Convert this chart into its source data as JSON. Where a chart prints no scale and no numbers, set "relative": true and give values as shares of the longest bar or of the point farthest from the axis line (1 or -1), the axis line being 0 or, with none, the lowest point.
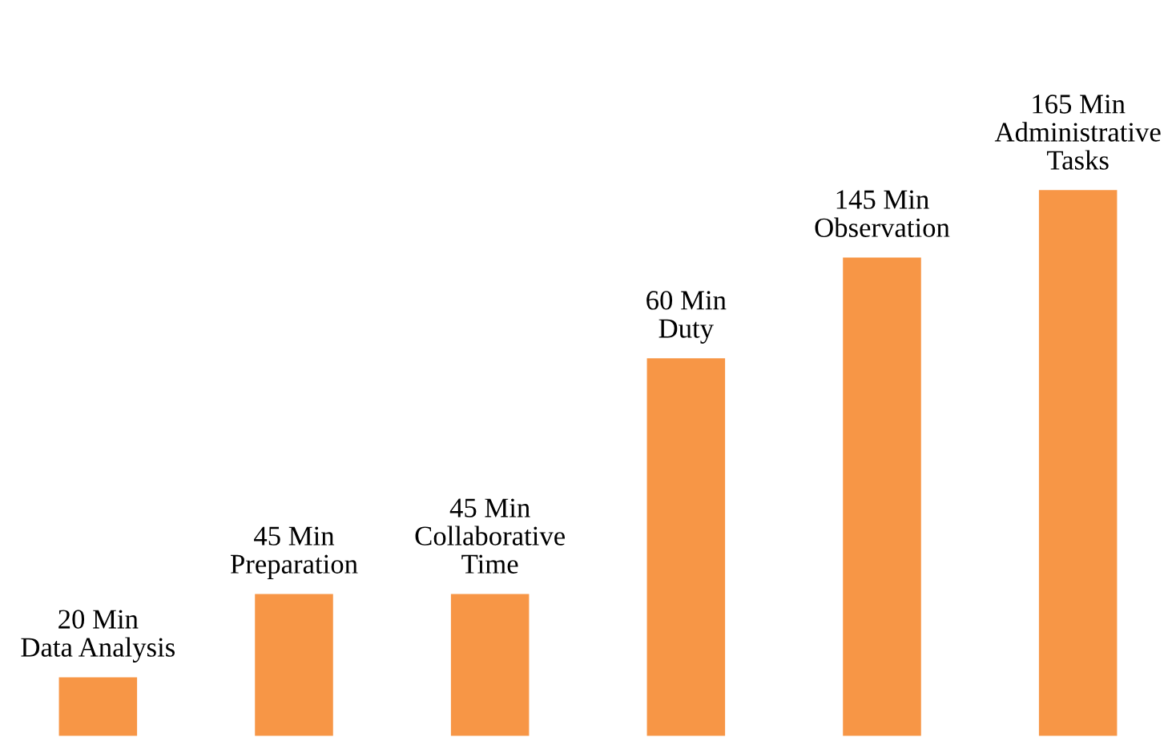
{
  "chart_data": {
    "type": "bar",
    "relative": true,
    "categories": [
      "20 Min\nData Analysis",
      "45 Min\nPreparation",
      "45 Min\nCollaborative\nTime",
      "60 Min\nDuty",
      "145 Min\nObservation",
      "165 Min\nAdministrative\nTasks"
    ],
    "values": [
      0.111,
      0.263,
      0.263,
      0.693,
      0.877,
      1
    ],
    "color": "#f79646",
    "legend": false
  }
}
